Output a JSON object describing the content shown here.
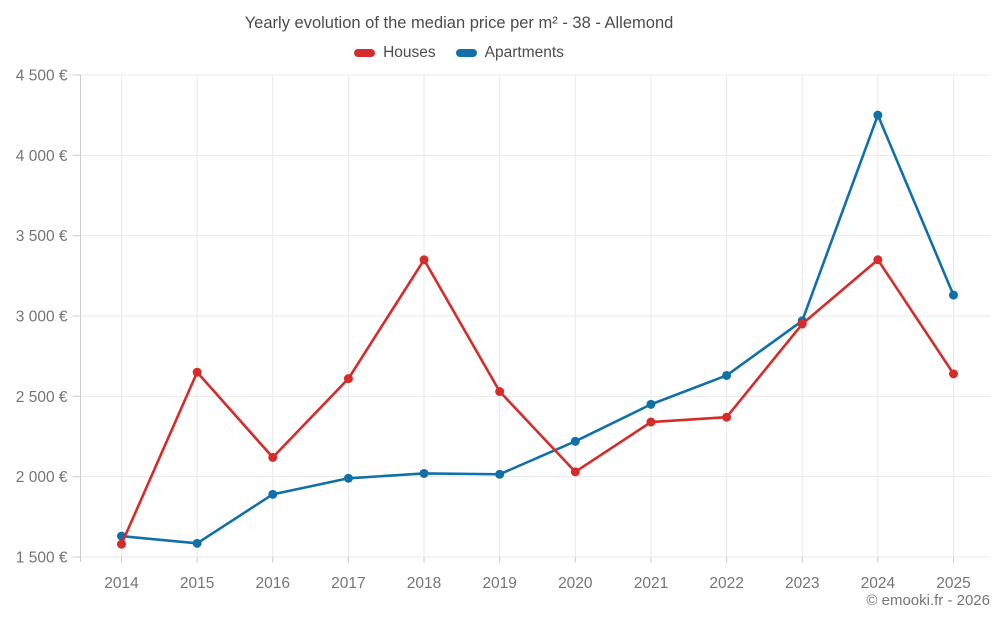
{
  "chart": {
    "title": "Yearly evolution of the median price per m² - 38 - Allemond",
    "footer": "© emooki.fr - 2026"
  },
  "chart_data": {
    "type": "line",
    "title": "Yearly evolution of the median price per m² - 38 - Allemond",
    "categories": [
      "2014",
      "2015",
      "2016",
      "2017",
      "2018",
      "2019",
      "2020",
      "2021",
      "2022",
      "2023",
      "2024",
      "2025"
    ],
    "series": [
      {
        "name": "Houses",
        "color": "#d62b2b",
        "values": [
          1580,
          2650,
          2120,
          2610,
          3350,
          2530,
          2030,
          2340,
          2370,
          2950,
          3350,
          2640
        ]
      },
      {
        "name": "Apartments",
        "color": "#1170a8",
        "values": [
          1630,
          1585,
          1890,
          1990,
          2020,
          2015,
          2220,
          2450,
          2630,
          2970,
          4250,
          3130
        ]
      }
    ],
    "xlabel": "",
    "ylabel": "",
    "ylim": [
      1500,
      4500
    ],
    "y_ticks": [
      1500,
      2000,
      2500,
      3000,
      3500,
      4000,
      4500
    ],
    "y_tick_labels": [
      "1 500 €",
      "2 000 €",
      "2 500 €",
      "3 000 €",
      "3 500 €",
      "4 000 €",
      "4 500 €"
    ],
    "grid": true,
    "legend_position": "top"
  }
}
